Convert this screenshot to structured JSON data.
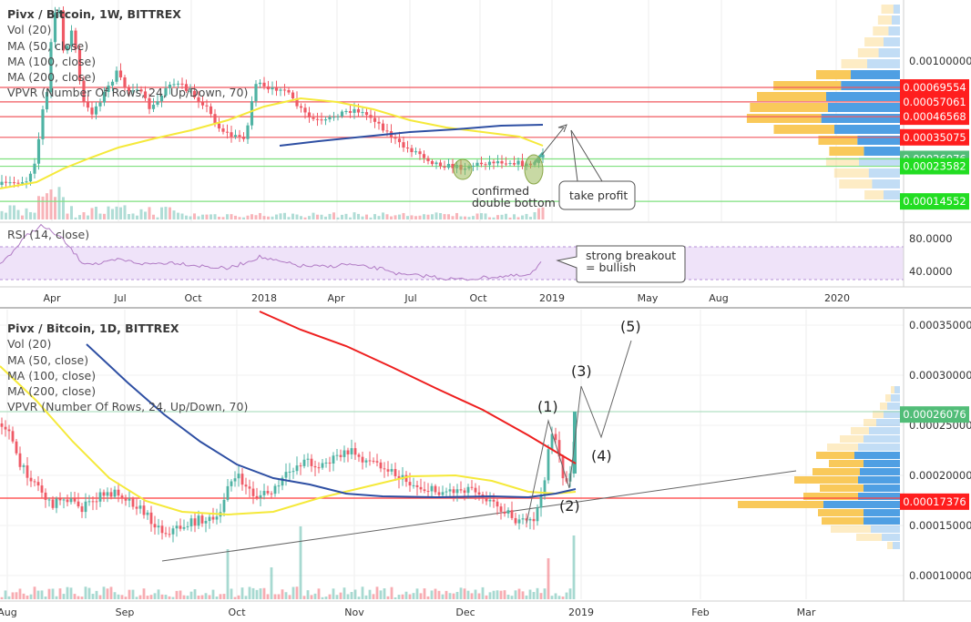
{
  "weekly": {
    "title": "Pivx / Bitcoin, 1W, BITTREX",
    "indicators": [
      "Vol (20)",
      "MA (50, close)",
      "MA (100, close)",
      "MA (200, close)",
      "VPVR (Number Of Rows, 24, Up/Down, 70)"
    ],
    "price_labels": [
      {
        "text": "0.00100000",
        "value": 0.001,
        "tag": false
      },
      {
        "text": "0.00069554",
        "value": 0.00069554,
        "tag": true,
        "color": "#ff1e1e"
      },
      {
        "text": "0.00057061",
        "value": 0.00057061,
        "tag": true,
        "color": "#ff1e1e"
      },
      {
        "text": "0.00046568",
        "value": 0.00046568,
        "tag": true,
        "color": "#ff1e1e"
      },
      {
        "text": "0.00035075",
        "value": 0.00035075,
        "tag": true,
        "color": "#ff1e1e"
      },
      {
        "text": "0.00026076",
        "value": 0.00026076,
        "tag": true,
        "color": "#52bd78"
      },
      {
        "text": "0.00023582",
        "value": 0.00023582,
        "tag": true,
        "color": "#22dd22"
      },
      {
        "text": "0.00014552",
        "value": 0.00014552,
        "tag": true,
        "color": "#22dd22"
      }
    ],
    "time_labels": [
      "Apr",
      "Jul",
      "Oct",
      "2018",
      "Apr",
      "Jul",
      "Oct",
      "2019",
      "May",
      "Aug",
      "2020"
    ],
    "annotations": {
      "double_bottom": [
        "confirmed",
        "double bottom"
      ],
      "take_profit": "take profit"
    }
  },
  "rsi": {
    "label": "RSI (14, close)",
    "level_labels": [
      "80.0000",
      "40.0000"
    ],
    "callout": [
      "strong breakout",
      "= bullish"
    ]
  },
  "daily": {
    "title": "Pivx / Bitcoin, 1D, BITTREX",
    "indicators": [
      "Vol (20)",
      "MA (50, close)",
      "MA (100, close)",
      "MA (200, close)",
      "VPVR (Number Of Rows, 24, Up/Down, 70)"
    ],
    "price_labels": [
      {
        "text": "0.00035000",
        "value": 0.00035
      },
      {
        "text": "0.00030000",
        "value": 0.0003
      },
      {
        "text": "0.00025000",
        "value": 0.00025
      },
      {
        "text": "0.00020000",
        "value": 0.0002
      },
      {
        "text": "0.00015000",
        "value": 0.00015
      },
      {
        "text": "0.00010000",
        "value": 0.0001
      }
    ],
    "tags": [
      {
        "text": "0.00026076",
        "value": 0.00026076,
        "color": "#52bd78"
      },
      {
        "text": "0.00017376",
        "value": 0.00017376,
        "color": "#ff1e1e"
      }
    ],
    "time_labels": [
      "Aug",
      "Sep",
      "Oct",
      "Nov",
      "Dec",
      "2019",
      "Feb",
      "Mar"
    ],
    "waves": [
      "(1)",
      "(2)",
      "(3)",
      "(4)",
      "(5)"
    ]
  },
  "colors": {
    "up": "#4fb3a4",
    "down": "#ef5a66",
    "ma50": "#f5e93a",
    "ma100": "#2e4fa3",
    "ma200": "#ee1f1f",
    "resistance": "#f0585f",
    "support": "#7ee07e",
    "vp_sell": "#f9c95a",
    "vp_buy": "#4f9fe3"
  }
}
